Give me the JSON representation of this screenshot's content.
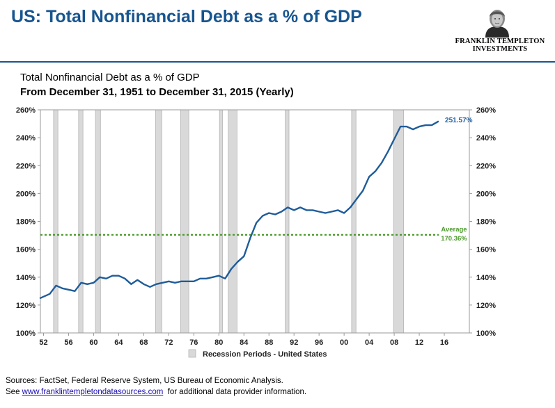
{
  "slide": {
    "title": "US: Total Nonfinancial Debt as a % of GDP"
  },
  "logo": {
    "line1": "FRANKLIN TEMPLETON",
    "line2": "INVESTMENTS"
  },
  "footer": {
    "sources": "Sources: FactSet, Federal Reserve System, US Bureau of Economic Analysis.",
    "see_prefix": "See",
    "link_text": "www.franklintempletondatasources.com",
    "see_suffix": "for additional data provider information."
  },
  "chart_data": {
    "type": "line",
    "title": "Total Nonfinancial Debt as a % of GDP",
    "subtitle": "From December 31, 1951 to December 31, 2015 (Yearly)",
    "xlabel": "",
    "ylabel": "",
    "xlim": [
      1951.5,
      2020
    ],
    "ylim": [
      100,
      260
    ],
    "y_ticks": [
      100,
      120,
      140,
      160,
      180,
      200,
      220,
      240,
      260
    ],
    "y_tick_labels": [
      "100%",
      "120%",
      "140%",
      "160%",
      "180%",
      "200%",
      "220%",
      "240%",
      "260%"
    ],
    "y_ticks_right": true,
    "x_ticks": [
      1952,
      1956,
      1960,
      1964,
      1968,
      1972,
      1976,
      1980,
      1984,
      1988,
      1992,
      1996,
      2000,
      2004,
      2008,
      2012,
      2016
    ],
    "x_tick_labels": [
      "52",
      "56",
      "60",
      "64",
      "68",
      "72",
      "76",
      "80",
      "84",
      "88",
      "92",
      "96",
      "00",
      "04",
      "08",
      "12",
      "16"
    ],
    "grid": false,
    "series": [
      {
        "name": "",
        "color": "#1f5c99",
        "x": [
          1951.5,
          1952,
          1953,
          1954,
          1955,
          1956,
          1957,
          1958,
          1959,
          1960,
          1961,
          1962,
          1963,
          1964,
          1965,
          1966,
          1967,
          1968,
          1969,
          1970,
          1971,
          1972,
          1973,
          1974,
          1975,
          1976,
          1977,
          1978,
          1979,
          1980,
          1981,
          1982,
          1983,
          1984,
          1985,
          1986,
          1987,
          1988,
          1989,
          1990,
          1991,
          1992,
          1993,
          1994,
          1995,
          1996,
          1997,
          1998,
          1999,
          2000,
          2001,
          2002,
          2003,
          2004,
          2005,
          2006,
          2007,
          2008,
          2009,
          2010,
          2011,
          2012,
          2013,
          2014,
          2015
        ],
        "y": [
          125,
          126,
          128,
          134,
          132,
          131,
          130,
          136,
          135,
          136,
          140,
          139,
          141,
          141,
          139,
          135,
          138,
          135,
          133,
          135,
          136,
          137,
          136,
          137,
          137,
          137,
          139,
          139,
          140,
          141,
          139,
          146,
          151,
          155,
          168,
          179,
          184,
          186,
          185,
          187,
          190,
          188,
          190,
          188,
          188,
          187,
          186,
          187,
          188,
          186,
          190,
          196,
          202,
          212,
          216,
          222,
          230,
          239,
          248,
          248,
          246,
          248,
          249,
          249,
          251.57
        ]
      }
    ],
    "end_label": "251.57%",
    "average": {
      "label": "Average",
      "value_label": "170.36%",
      "value": 170.36,
      "color": "#4a9a2a"
    },
    "recession_periods": [
      [
        1953.6,
        1954.3
      ],
      [
        1957.6,
        1958.3
      ],
      [
        1960.3,
        1961.1
      ],
      [
        1969.9,
        1970.9
      ],
      [
        1973.9,
        1975.2
      ],
      [
        1980.1,
        1980.6
      ],
      [
        1981.5,
        1982.9
      ],
      [
        1990.6,
        1991.2
      ],
      [
        2001.2,
        2001.9
      ],
      [
        2007.9,
        2009.5
      ]
    ],
    "recession_color": "#d9d9d9",
    "legend": {
      "label": "Recession Periods - United States",
      "placement": "bottom-center"
    }
  }
}
